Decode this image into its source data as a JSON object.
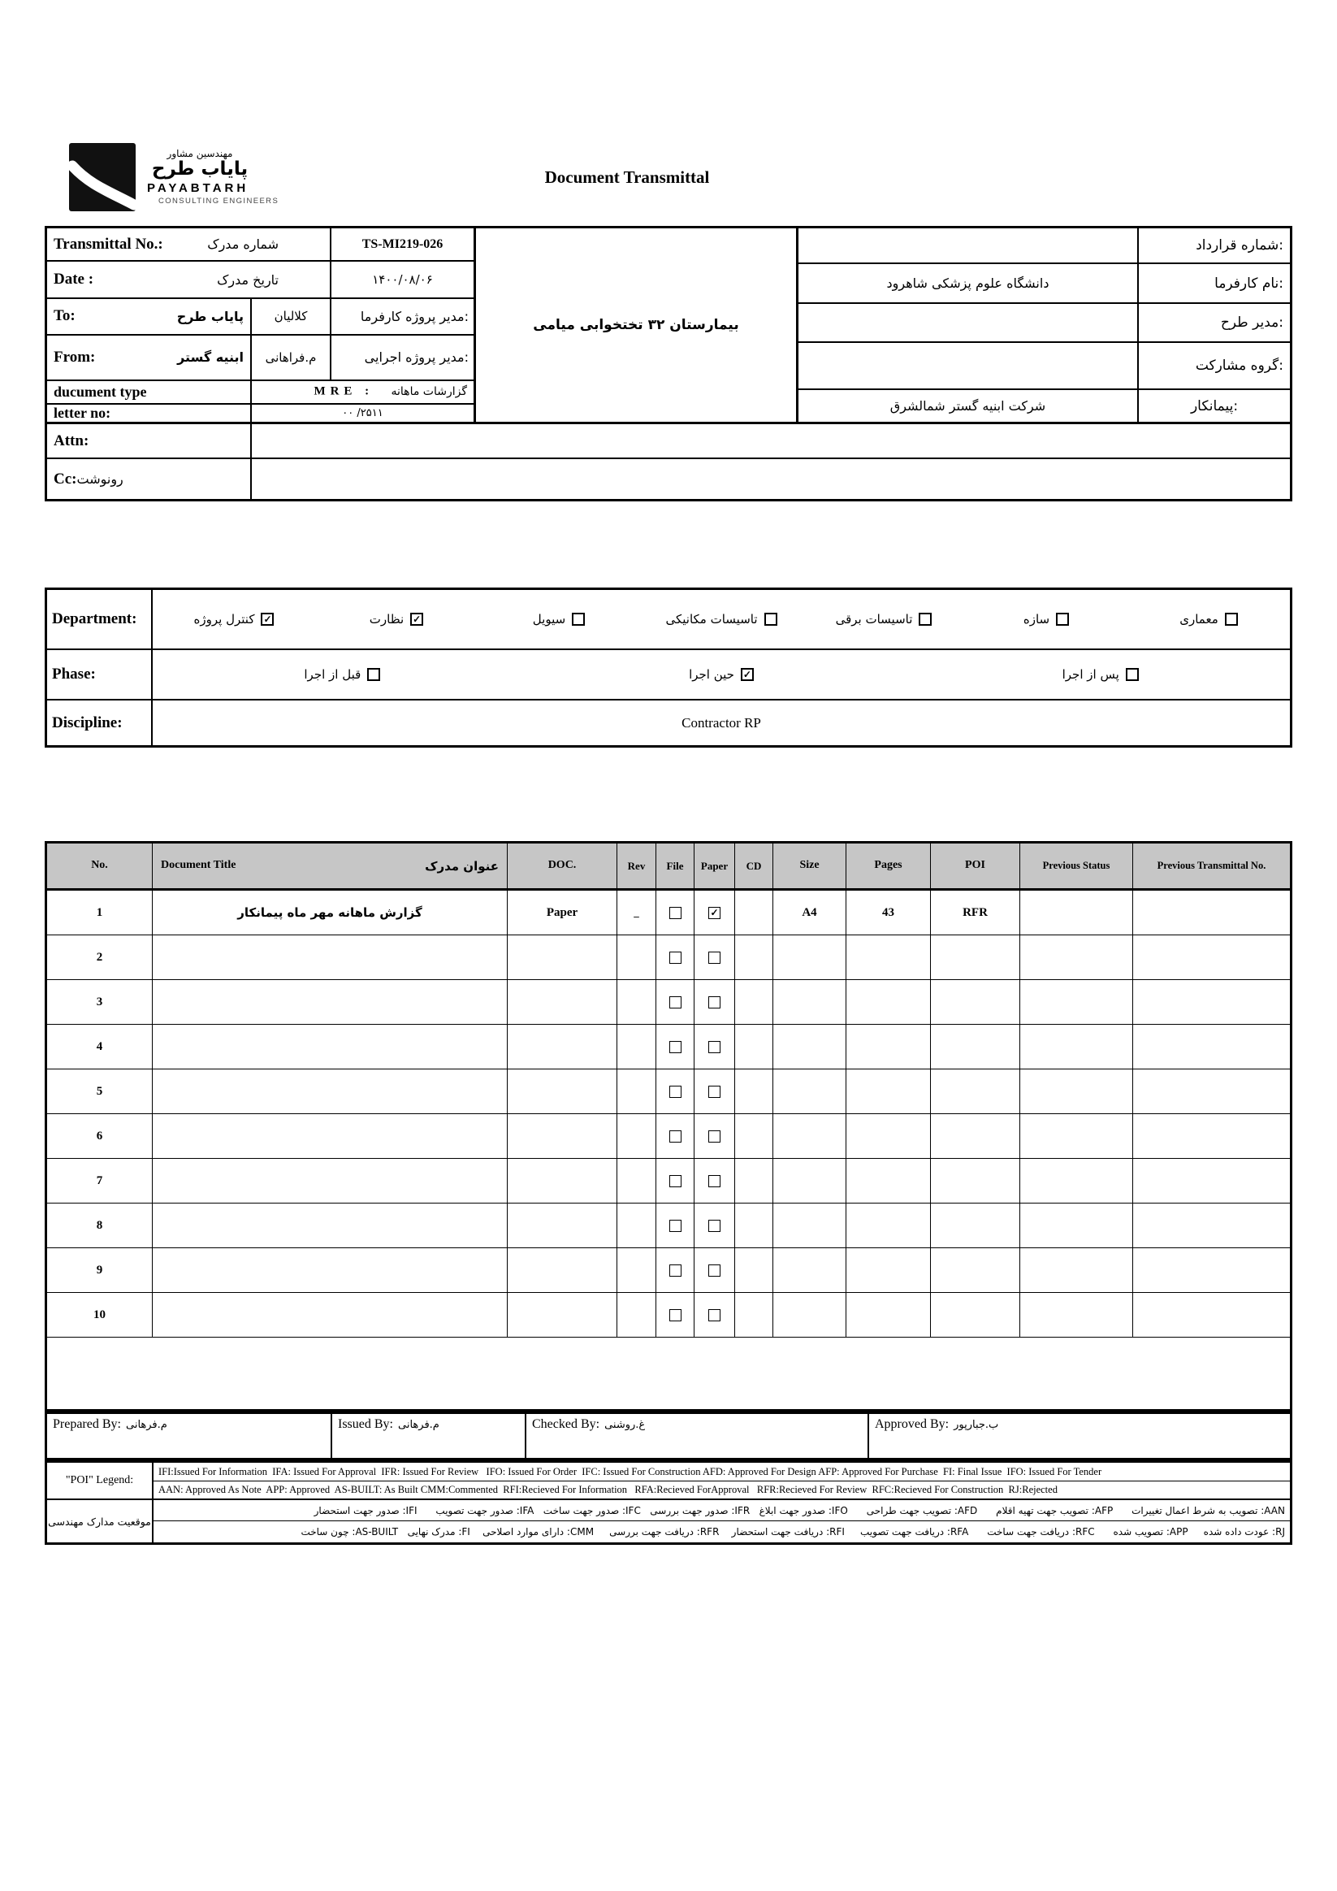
{
  "page": {
    "title_en": "Document Transmittal"
  },
  "logo": {
    "fa_tagline": "مهندسین مشاور",
    "fa_name": "پایاب طرح",
    "en_name": "PAYABTARH",
    "en_tagline": "CONSULTING ENGINEERS"
  },
  "info": {
    "transmittal": {
      "label": "Transmittal No.:",
      "label_fa": "شماره مدرک",
      "value": "TS-MI219-026"
    },
    "date": {
      "label": "Date  :",
      "label_fa": "تاریخ مدرک",
      "value": "۱۴۰۰/۰۸/۰۶"
    },
    "to": {
      "label": "To:",
      "value_fa": "پایاب طرح",
      "person_fa": "کلالیان",
      "role_fa": "مدیر پروژه کارفرما:"
    },
    "from": {
      "label": "From:",
      "value_fa": "ابنیه گستر",
      "person_fa": "م.فراهانی",
      "role_fa": "مدیر پروژه اجرایی:"
    },
    "doc_type": {
      "label": "ducument type",
      "value_en": "MRE :",
      "value_fa": "گزارشات ماهانه"
    },
    "letter_no": {
      "label": "letter no:",
      "value": "۰۰ /۲۵۱۱"
    },
    "attn": {
      "label": "Attn:",
      "value": ""
    },
    "cc": {
      "label": "Cc:",
      "label_fa": "رونوشت",
      "value": ""
    },
    "project_fa": "بیمارستان ۳۲ تختخوابی میامی",
    "right_rows": [
      {
        "label": "شماره قرارداد:",
        "value": ""
      },
      {
        "label": "نام کارفرما:",
        "value": "دانشگاه علوم پزشکی شاهرود"
      },
      {
        "label": "مدیر طرح:",
        "value": ""
      },
      {
        "label": "گروه مشارکت:",
        "value": ""
      },
      {
        "label": "پیمانکار:",
        "value": "شرکت ابنیه گستر شمالشرق"
      }
    ]
  },
  "classification": {
    "department_label": "Department:",
    "departments": [
      {
        "label": "کنترل پروژه",
        "checked": true
      },
      {
        "label": "نظارت",
        "checked": true
      },
      {
        "label": "سیویل",
        "checked": false
      },
      {
        "label": "تاسیسات مکانیکی",
        "checked": false
      },
      {
        "label": "تاسیسات برقی",
        "checked": false
      },
      {
        "label": "سازه",
        "checked": false
      },
      {
        "label": "معماری",
        "checked": false
      }
    ],
    "phase_label": "Phase:",
    "phases": [
      {
        "label": "قبل از اجرا",
        "checked": false
      },
      {
        "label": "حین اجرا",
        "checked": true
      },
      {
        "label": "پس از اجرا",
        "checked": false
      }
    ],
    "discipline_label": "Discipline:",
    "discipline_value": "Contractor RP"
  },
  "doc_table": {
    "headers": {
      "no": "No.",
      "title_en": "Document Title",
      "title_fa": "عنوان مدرک",
      "doc": "DOC.",
      "rev": "Rev",
      "file": "File",
      "paper": "Paper",
      "cd": "CD",
      "size": "Size",
      "pages": "Pages",
      "poi": "POI",
      "prev_status": "Previous Status",
      "prev_transmittal": "Previous Transmittal No."
    },
    "rows": [
      {
        "no": "1",
        "title": "گزارش ماهانه مهر ماه پیمانکار",
        "doc": "Paper",
        "rev": "_",
        "file_checked": false,
        "paper_checked": true,
        "cd": "",
        "size": "A4",
        "pages": "43",
        "poi": "RFR",
        "prev_status": "",
        "prev_transmittal": ""
      },
      {
        "no": "2",
        "title": "",
        "doc": "",
        "rev": "",
        "file_checked": false,
        "paper_checked": false,
        "cd": "",
        "size": "",
        "pages": "",
        "poi": "",
        "prev_status": "",
        "prev_transmittal": ""
      },
      {
        "no": "3",
        "title": "",
        "doc": "",
        "rev": "",
        "file_checked": false,
        "paper_checked": false,
        "cd": "",
        "size": "",
        "pages": "",
        "poi": "",
        "prev_status": "",
        "prev_transmittal": ""
      },
      {
        "no": "4",
        "title": "",
        "doc": "",
        "rev": "",
        "file_checked": false,
        "paper_checked": false,
        "cd": "",
        "size": "",
        "pages": "",
        "poi": "",
        "prev_status": "",
        "prev_transmittal": ""
      },
      {
        "no": "5",
        "title": "",
        "doc": "",
        "rev": "",
        "file_checked": false,
        "paper_checked": false,
        "cd": "",
        "size": "",
        "pages": "",
        "poi": "",
        "prev_status": "",
        "prev_transmittal": ""
      },
      {
        "no": "6",
        "title": "",
        "doc": "",
        "rev": "",
        "file_checked": false,
        "paper_checked": false,
        "cd": "",
        "size": "",
        "pages": "",
        "poi": "",
        "prev_status": "",
        "prev_transmittal": ""
      },
      {
        "no": "7",
        "title": "",
        "doc": "",
        "rev": "",
        "file_checked": false,
        "paper_checked": false,
        "cd": "",
        "size": "",
        "pages": "",
        "poi": "",
        "prev_status": "",
        "prev_transmittal": ""
      },
      {
        "no": "8",
        "title": "",
        "doc": "",
        "rev": "",
        "file_checked": false,
        "paper_checked": false,
        "cd": "",
        "size": "",
        "pages": "",
        "poi": "",
        "prev_status": "",
        "prev_transmittal": ""
      },
      {
        "no": "9",
        "title": "",
        "doc": "",
        "rev": "",
        "file_checked": false,
        "paper_checked": false,
        "cd": "",
        "size": "",
        "pages": "",
        "poi": "",
        "prev_status": "",
        "prev_transmittal": ""
      },
      {
        "no": "10",
        "title": "",
        "doc": "",
        "rev": "",
        "file_checked": false,
        "paper_checked": false,
        "cd": "",
        "size": "",
        "pages": "",
        "poi": "",
        "prev_status": "",
        "prev_transmittal": ""
      }
    ]
  },
  "signatures": [
    {
      "label": "Prepared By:",
      "name_fa": "م.فرهانی"
    },
    {
      "label": "Issued By:",
      "name_fa": "م.فرهانی"
    },
    {
      "label": "Checked By:",
      "name_fa": "غ.روشنی"
    },
    {
      "label": "Approved By:",
      "name_fa": "ب.جبارپور"
    }
  ],
  "legend": {
    "poi_label": "\"POI\" Legend:",
    "status_label_fa": "موقعیت مدارک مهندسی",
    "en_line1": "IFI:Issued For Information  IFA: Issued For Approval  IFR: Issued For Review   IFO: Issued For Order  IFC: Issued For Construction AFD: Approved For Design AFP: Approved For Purchase  FI: Final Issue  IFO: Issued For Tender",
    "en_line2": "AAN: Approved As Note  APP: Approved  AS-BUILT: As Built CMM:Commented  RFI:Recieved For Information   RFA:Recieved ForApproval   RFR:Recieved For Review  RFC:Recieved For Construction  RJ:Rejected",
    "fa_line1": "AAN: تصویب به شرط اعمال تغییرات      AFP: تصویب جهت تهیه اقلام      AFD: تصویب جهت طراحی      IFO: صدور جهت ابلاغ   IFR: صدور جهت بررسی   IFC: صدور جهت ساخت   IFA: صدور جهت تصویب      IFI: صدور جهت استحضار",
    "fa_line2": "RJ: عودت داده شده     APP: تصویب شده      RFC: دریافت جهت ساخت      RFA: دریافت جهت تصویب     RFI: دریافت جهت استحضار    RFR: دریافت جهت بررسی     CMM: دارای موارد اصلاحی    FI: مدرک نهایی   AS-BUILT: چون ساخت"
  }
}
